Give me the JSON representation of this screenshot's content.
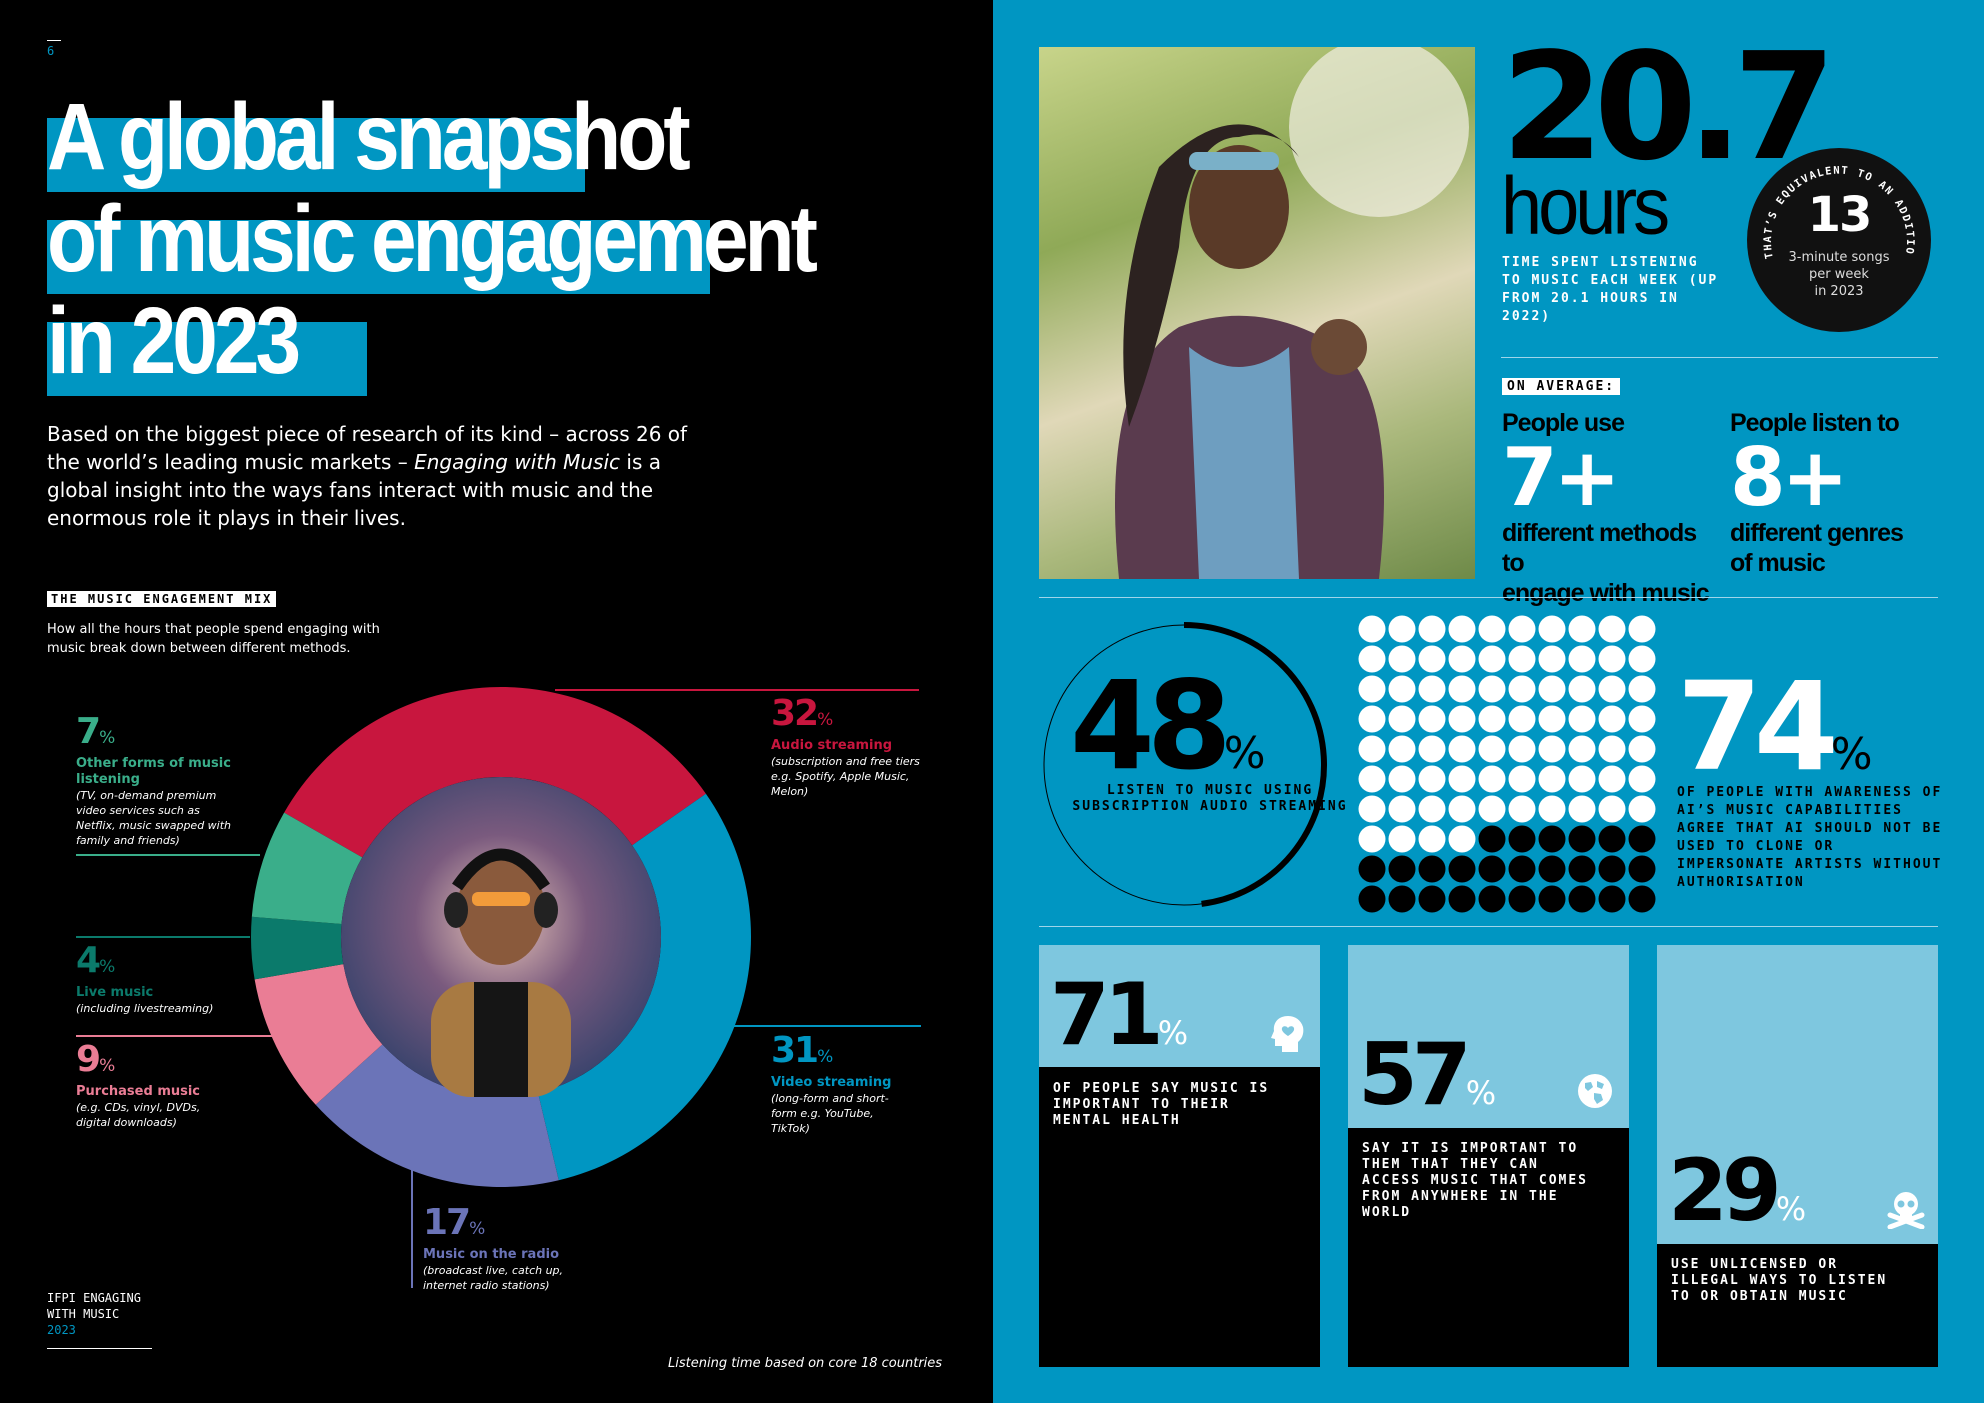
{
  "page_number": "6",
  "title": {
    "line1": "A global snapshot",
    "line2": "of music engagement",
    "line3": "in 2023"
  },
  "intro": {
    "before": "Based on the biggest piece of research of its kind – across 26 of the world’s leading music markets – ",
    "italic": "Engaging with Music",
    "after": " is a global insight into the ways fans interact with music and the enormous role it plays in their lives."
  },
  "mix": {
    "label": "THE MUSIC ENGAGEMENT MIX",
    "subtitle": "How all the hours that people spend engaging with music break down between different methods."
  },
  "chart_data": {
    "type": "pie",
    "title": "THE MUSIC ENGAGEMENT MIX",
    "unit": "%",
    "series": [
      {
        "name": "Audio streaming",
        "value": 32,
        "description": "(subscription and free tiers e.g. Spotify, Apple Music, Melon)",
        "color": "#c8163e"
      },
      {
        "name": "Video streaming",
        "value": 31,
        "description": "(long-form and short-form e.g. YouTube, TikTok)",
        "color": "#0096c2"
      },
      {
        "name": "Music on the radio",
        "value": 17,
        "description": "(broadcast live, catch up, internet radio stations)",
        "color": "#6b74b8"
      },
      {
        "name": "Purchased music",
        "value": 9,
        "description": "(e.g. CDs, vinyl, DVDs, digital downloads)",
        "color": "#ea7d95"
      },
      {
        "name": "Live music",
        "value": 4,
        "description": "(including livestreaming)",
        "color": "#0b7a6b"
      },
      {
        "name": "Other forms of music listening",
        "value": 7,
        "description": "(TV, on-demand premium video services such as Netflix, music swapped with family and friends)",
        "color": "#3aae8a"
      }
    ]
  },
  "footer": {
    "brand_line1": "IFPI ENGAGING",
    "brand_line2": "WITH MUSIC",
    "brand_year": "2023",
    "footnote": "Listening time based on core 18 countries"
  },
  "hours": {
    "value": "20.7",
    "unit": "hours",
    "caption": "TIME SPENT LISTENING TO MUSIC EACH WEEK (UP FROM 20.1 HOURS IN 2022)",
    "circle_arc": "THAT’S EQUIVALENT TO AN ADDITIONAL",
    "circle_value": "13",
    "circle_line1": "3-minute songs",
    "circle_line2": "per week",
    "circle_line3": "in 2023"
  },
  "average": {
    "label": "ON AVERAGE:",
    "methods_pre": "People use",
    "methods_value": "7+",
    "methods_post_1": "different methods to",
    "methods_post_2": "engage with music",
    "genres_pre": "People listen to",
    "genres_value": "8+",
    "genres_post_1": "different genres",
    "genres_post_2": "of music"
  },
  "stat48": {
    "value": 48,
    "suffix": "%",
    "label": "LISTEN TO MUSIC USING SUBSCRIPTION AUDIO STREAMING"
  },
  "stat74": {
    "value": 74,
    "suffix": "%",
    "label": "OF PEOPLE WITH AWARENESS OF AI’S MUSIC CAPABILITIES AGREE THAT AI SHOULD NOT BE USED TO CLONE OR IMPERSONATE ARTISTS WITHOUT AUTHORISATION"
  },
  "stat71": {
    "value": "71",
    "suffix": "%",
    "label": "OF PEOPLE SAY MUSIC IS IMPORTANT TO THEIR MENTAL HEALTH",
    "icon": "head-heart-icon"
  },
  "stat57": {
    "value": "57",
    "suffix": "%",
    "label": "SAY IT IS IMPORTANT TO THEM THAT THEY CAN ACCESS MUSIC THAT COMES FROM ANYWHERE IN THE WORLD",
    "icon": "globe-icon"
  },
  "stat29": {
    "value": "29",
    "suffix": "%",
    "label": "USE UNLICENSED OR ILLEGAL WAYS TO LISTEN TO OR OBTAIN MUSIC",
    "icon": "skull-crossbones-icon"
  },
  "colors": {
    "accent": "#0096c2",
    "background_left": "#000000",
    "background_right": "#0096c2",
    "card": "#7ec7df"
  }
}
